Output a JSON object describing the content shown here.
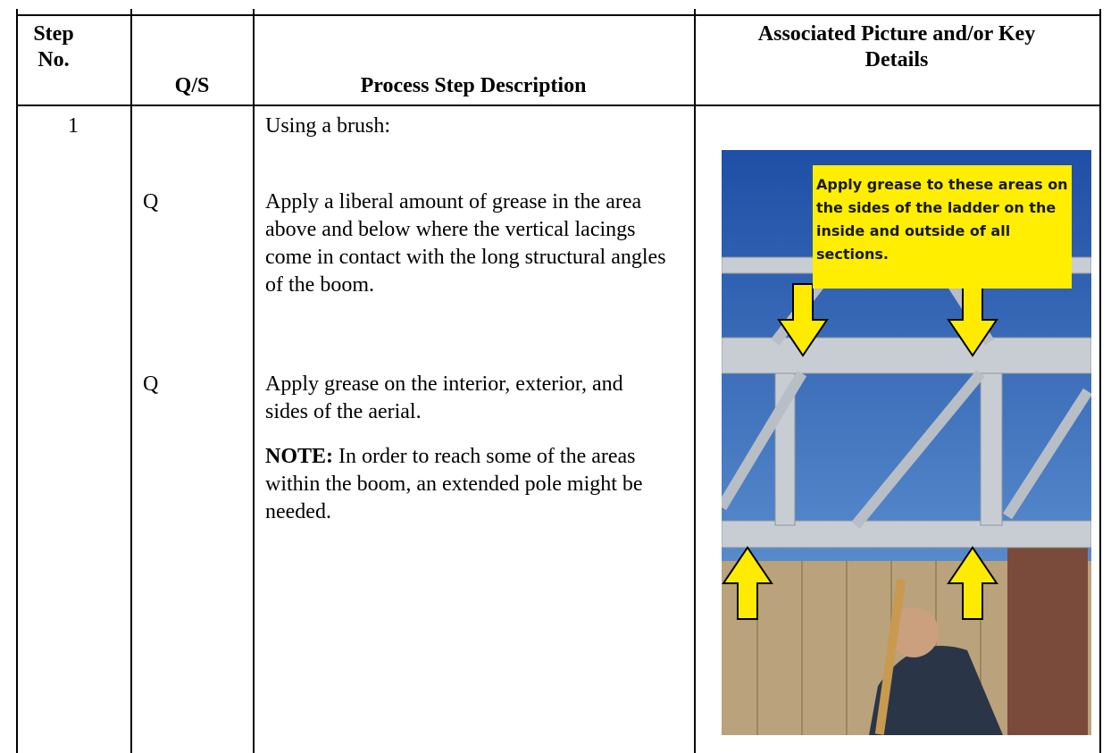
{
  "table": {
    "headers": [
      "Step No.",
      "Q/S",
      "Process Step Description",
      "Associated Picture and/or Key Details"
    ],
    "step": {
      "number": "1",
      "intro": "Using a brush:",
      "items": [
        {
          "qs": "Q",
          "text": "Apply a liberal amount of grease in the area above and below where the vertical lacings come in contact with the long structural angles of the boom."
        },
        {
          "qs": "Q",
          "text": "Apply grease on the interior, exterior, and sides of the aerial."
        }
      ],
      "note": {
        "label": "NOTE:",
        "text": "In order to reach some of the areas within the boom, an extended pole might be needed."
      }
    },
    "picture": {
      "callout": "Apply grease to these areas on the sides of the ladder on the inside and outside of all sections."
    }
  }
}
